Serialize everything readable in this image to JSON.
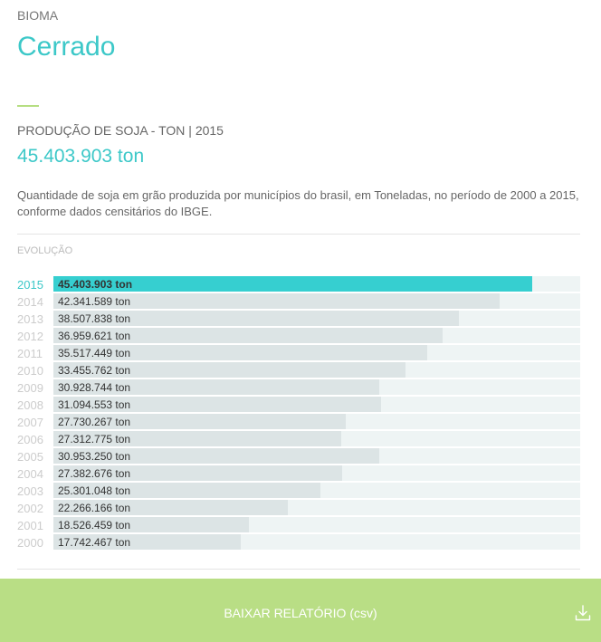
{
  "header": {
    "label": "BIOMA",
    "name": "Cerrado"
  },
  "metric": {
    "label": "PRODUÇÃO DE SOJA - TON | 2015",
    "value": "45.403.903 ton"
  },
  "description": "Quantidade de soja em grão produzida por municípios do brasil, em Toneladas, no período de 2000 a 2015, conforme dados censitários do IBGE.",
  "section_label": "EVOLUÇÃO",
  "download": {
    "label": "BAIXAR RELATÓRIO (csv)",
    "icon": "download-icon"
  },
  "colors": {
    "accent": "#3cc8c8",
    "highlight_bar": "#36cfd0",
    "bar": "#dce4e5",
    "track": "#eef4f4",
    "button": "#b9de85"
  },
  "chart_data": {
    "type": "bar",
    "orientation": "horizontal",
    "highlight": "2015",
    "categories": [
      "2015",
      "2014",
      "2013",
      "2012",
      "2011",
      "2010",
      "2009",
      "2008",
      "2007",
      "2006",
      "2005",
      "2004",
      "2003",
      "2002",
      "2001",
      "2000"
    ],
    "values": [
      45403903,
      42341589,
      38507838,
      36959621,
      35517449,
      33455762,
      30928744,
      31094553,
      27730267,
      27312775,
      30953250,
      27382676,
      25301048,
      22266166,
      18526459,
      17742467
    ],
    "labels": [
      "45.403.903 ton",
      "42.341.589 ton",
      "38.507.838 ton",
      "36.959.621 ton",
      "35.517.449 ton",
      "33.455.762 ton",
      "30.928.744 ton",
      "31.094.553 ton",
      "27.730.267 ton",
      "27.312.775 ton",
      "30.953.250 ton",
      "27.382.676 ton",
      "25.301.048 ton",
      "22.266.166 ton",
      "18.526.459 ton",
      "17.742.467 ton"
    ],
    "xlim": [
      0,
      50000000
    ]
  }
}
